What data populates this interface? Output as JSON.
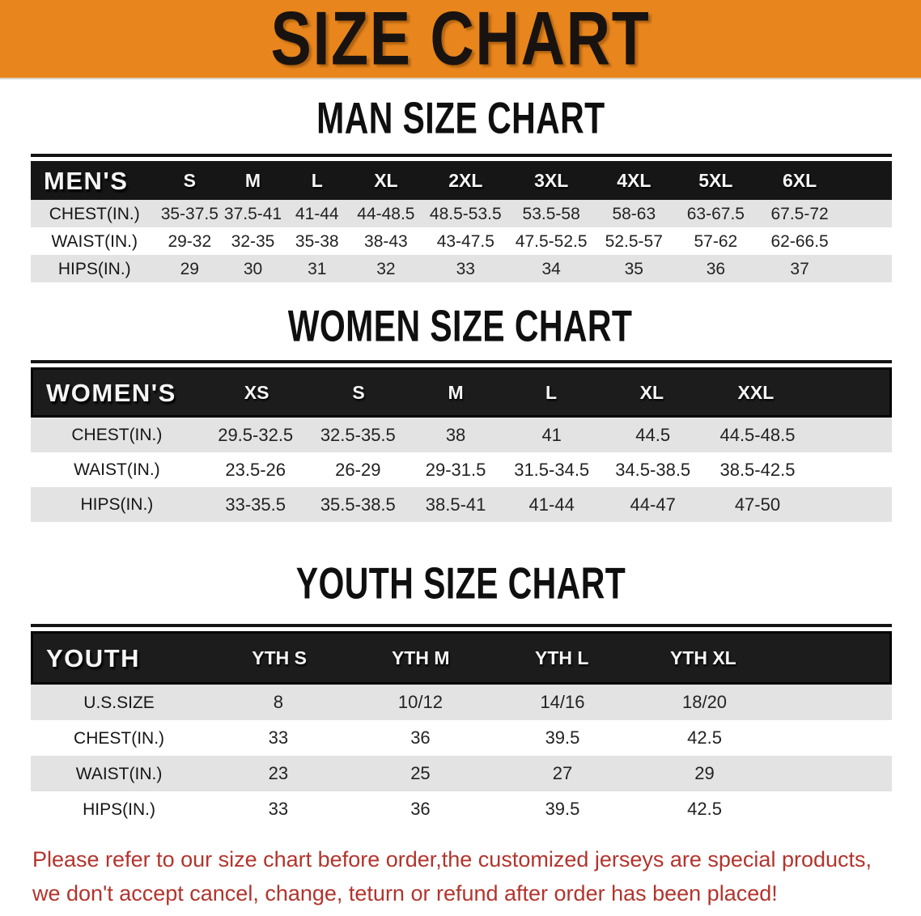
{
  "banner": {
    "title": "SIZE CHART"
  },
  "colors": {
    "banner_bg": "#E8861D",
    "header_bar": "#161616",
    "row_gray": "#E3E3E3",
    "disclaimer_red": "#B3342D"
  },
  "men": {
    "section_title": "MAN SIZE CHART",
    "header_label": "MEN'S",
    "columns": [
      "S",
      "M",
      "L",
      "XL",
      "2XL",
      "3XL",
      "4XL",
      "5XL",
      "6XL"
    ],
    "rows": [
      {
        "label": "CHEST(IN.)",
        "values": [
          "35-37.5",
          "37.5-41",
          "41-44",
          "44-48.5",
          "48.5-53.5",
          "53.5-58",
          "58-63",
          "63-67.5",
          "67.5-72"
        ]
      },
      {
        "label": "WAIST(IN.)",
        "values": [
          "29-32",
          "32-35",
          "35-38",
          "38-43",
          "43-47.5",
          "47.5-52.5",
          "52.5-57",
          "57-62",
          "62-66.5"
        ]
      },
      {
        "label": "HIPS(IN.)",
        "values": [
          "29",
          "30",
          "31",
          "32",
          "33",
          "34",
          "35",
          "36",
          "37"
        ]
      }
    ]
  },
  "women": {
    "section_title": "WOMEN SIZE CHART",
    "header_label": "WOMEN'S",
    "columns": [
      "XS",
      "S",
      "M",
      "L",
      "XL",
      "XXL"
    ],
    "rows": [
      {
        "label": "CHEST(IN.)",
        "values": [
          "29.5-32.5",
          "32.5-35.5",
          "38",
          "41",
          "44.5",
          "44.5-48.5"
        ]
      },
      {
        "label": "WAIST(IN.)",
        "values": [
          "23.5-26",
          "26-29",
          "29-31.5",
          "31.5-34.5",
          "34.5-38.5",
          "38.5-42.5"
        ]
      },
      {
        "label": "HIPS(IN.)",
        "values": [
          "33-35.5",
          "35.5-38.5",
          "38.5-41",
          "41-44",
          "44-47",
          "47-50"
        ]
      }
    ]
  },
  "youth": {
    "section_title": "YOUTH SIZE CHART",
    "header_label": "YOUTH",
    "columns": [
      "YTH S",
      "YTH M",
      "YTH L",
      "YTH XL"
    ],
    "rows": [
      {
        "label": "U.S.SIZE",
        "values": [
          "8",
          "10/12",
          "14/16",
          "18/20"
        ]
      },
      {
        "label": "CHEST(IN.)",
        "values": [
          "33",
          "36",
          "39.5",
          "42.5"
        ]
      },
      {
        "label": "WAIST(IN.)",
        "values": [
          "23",
          "25",
          "27",
          "29"
        ]
      },
      {
        "label": "HIPS(IN.)",
        "values": [
          "33",
          "36",
          "39.5",
          "42.5"
        ]
      }
    ]
  },
  "disclaimer": {
    "line1": "Please refer to our size chart before order,the customized jerseys are special products,",
    "line2": "we don't accept cancel, change, teturn or refund after order has been placed!"
  }
}
